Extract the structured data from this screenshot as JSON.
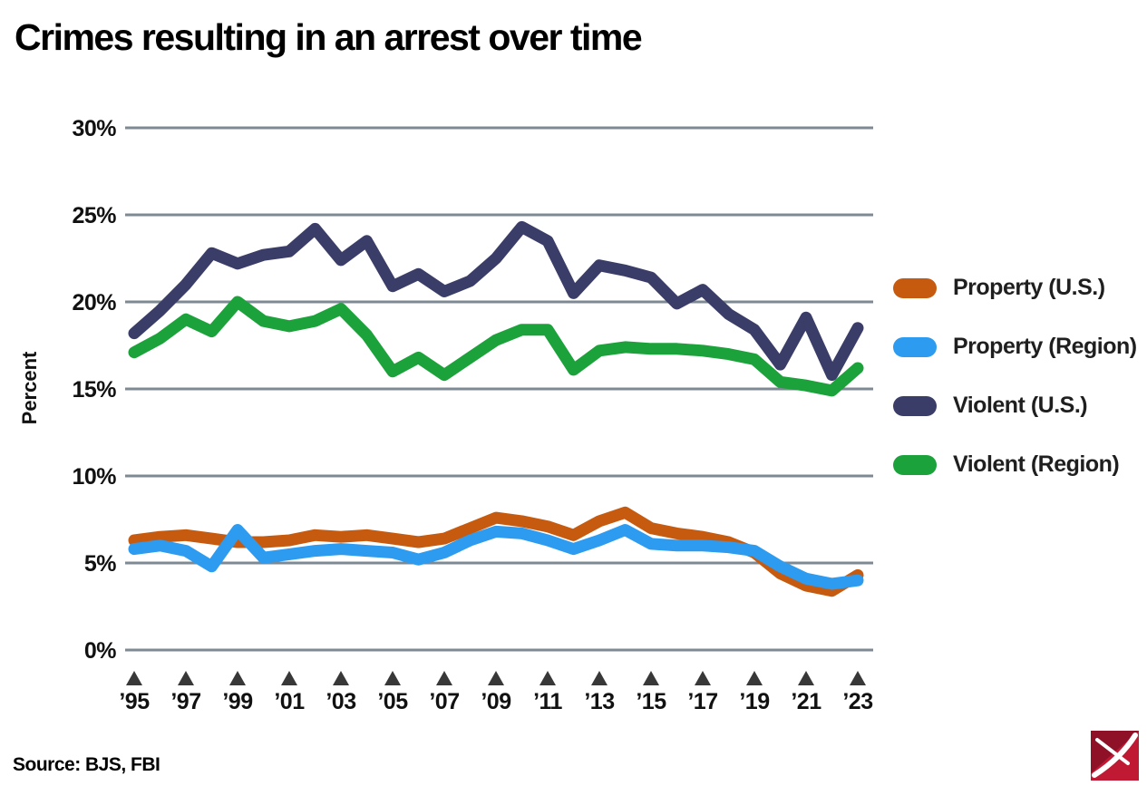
{
  "title": "Crimes resulting in an arrest over time",
  "source": "Source: BJS, FBI",
  "legend": [
    {
      "label": "Property (U.S.)",
      "color": "#C65B10"
    },
    {
      "label": "Property (Region)",
      "color": "#2D9BF0"
    },
    {
      "label": "Violent (U.S.)",
      "color": "#3A3D68"
    },
    {
      "label": "Violent (Region)",
      "color": "#1CA23A"
    }
  ],
  "colors": {
    "gridline": "#7D8993",
    "tick_text": "#111111",
    "triangle": "#383838",
    "logo_red": "#C01933",
    "logo_dark_red": "#8E1128",
    "logo_white": "#ffffff"
  },
  "chart_data": {
    "type": "line",
    "title": "Crimes resulting in an arrest over time",
    "ylabel": "Percent",
    "ylim": [
      0,
      30
    ],
    "y_ticks": [
      0,
      5,
      10,
      15,
      20,
      25,
      30
    ],
    "y_tick_labels": [
      "0%",
      "5%",
      "10%",
      "15%",
      "20%",
      "25%",
      "30%"
    ],
    "grid": true,
    "legend_position": "right",
    "x": [
      1995,
      1996,
      1997,
      1998,
      1999,
      2000,
      2001,
      2002,
      2003,
      2004,
      2005,
      2006,
      2007,
      2008,
      2009,
      2010,
      2011,
      2012,
      2013,
      2014,
      2015,
      2016,
      2017,
      2018,
      2019,
      2020,
      2021,
      2022,
      2023
    ],
    "x_tick_years": [
      1995,
      1997,
      1999,
      2001,
      2003,
      2005,
      2007,
      2009,
      2011,
      2013,
      2015,
      2017,
      2019,
      2021,
      2023
    ],
    "x_tick_labels": [
      "’95",
      "’97",
      "’99",
      "’01",
      "’03",
      "’05",
      "’07",
      "’09",
      "’11",
      "’13",
      "’15",
      "’17",
      "’19",
      "’21",
      "’23"
    ],
    "series": [
      {
        "name": "Violent (U.S.)",
        "color": "#3A3D68",
        "values": [
          18.2,
          19.5,
          21.0,
          22.8,
          22.2,
          22.7,
          22.9,
          24.2,
          22.4,
          23.5,
          20.9,
          21.6,
          20.6,
          21.2,
          22.5,
          24.3,
          23.5,
          20.5,
          22.1,
          21.8,
          21.4,
          19.9,
          20.7,
          19.3,
          18.4,
          16.4,
          19.1,
          15.8,
          18.5
        ]
      },
      {
        "name": "Violent (Region)",
        "color": "#1CA23A",
        "values": [
          17.1,
          17.9,
          19.0,
          18.3,
          20.0,
          18.9,
          18.6,
          18.9,
          19.6,
          18.1,
          16.0,
          16.8,
          15.8,
          16.8,
          17.8,
          18.4,
          18.4,
          16.1,
          17.2,
          17.4,
          17.3,
          17.3,
          17.2,
          17.0,
          16.7,
          15.4,
          15.2,
          14.9,
          16.2
        ]
      },
      {
        "name": "Property (U.S.)",
        "color": "#C65B10",
        "values": [
          6.3,
          6.5,
          6.6,
          6.4,
          6.2,
          6.2,
          6.3,
          6.6,
          6.5,
          6.6,
          6.4,
          6.2,
          6.4,
          7.0,
          7.6,
          7.4,
          7.1,
          6.6,
          7.4,
          7.9,
          7.0,
          6.7,
          6.5,
          6.2,
          5.6,
          4.4,
          3.7,
          3.4,
          4.3
        ]
      },
      {
        "name": "Property (Region)",
        "color": "#2D9BF0",
        "values": [
          5.8,
          6.0,
          5.7,
          4.8,
          6.9,
          5.3,
          5.5,
          5.7,
          5.8,
          5.7,
          5.6,
          5.2,
          5.6,
          6.3,
          6.8,
          6.7,
          6.3,
          5.8,
          6.3,
          6.9,
          6.1,
          6.0,
          6.0,
          5.9,
          5.7,
          4.8,
          4.1,
          3.8,
          4.0
        ]
      }
    ]
  }
}
